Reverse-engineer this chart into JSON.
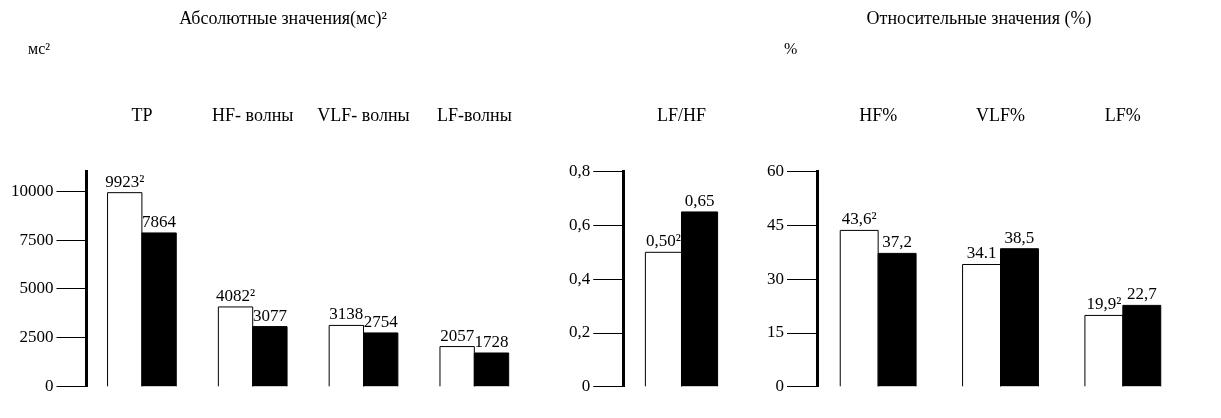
{
  "chart_data": [
    {
      "type": "bar",
      "title": "Абсолютные значения(мс)²",
      "ylabel": "мс²",
      "categories": [
        "TP",
        "HF- волны",
        "VLF- волны",
        "LF-волны"
      ],
      "ylim": [
        0,
        11000
      ],
      "yticks": [
        0,
        2500,
        5000,
        7500,
        10000
      ],
      "series": [
        {
          "color": "#ffffff",
          "values": [
            9923,
            4082,
            3138,
            2057
          ],
          "value_labels": [
            "9923²",
            "4082²",
            "3138",
            "2057"
          ]
        },
        {
          "color": "#000000",
          "values": [
            7864,
            3077,
            2754,
            1728
          ],
          "value_labels": [
            "7864",
            "3077",
            "2754",
            "1728"
          ]
        }
      ]
    },
    {
      "type": "bar",
      "categories": [
        "LF/HF"
      ],
      "ylim": [
        0,
        0.8
      ],
      "yticks": [
        {
          "value": 0,
          "label": "0"
        },
        {
          "value": 0.2,
          "label": "0,2"
        },
        {
          "value": 0.4,
          "label": "0,4"
        },
        {
          "value": 0.6,
          "label": "0,6"
        },
        {
          "value": 0.8,
          "label": "0,8"
        }
      ],
      "series": [
        {
          "color": "#ffffff",
          "values": [
            0.5
          ],
          "value_labels": [
            "0,50²"
          ]
        },
        {
          "color": "#000000",
          "values": [
            0.65
          ],
          "value_labels": [
            "0,65"
          ]
        }
      ]
    },
    {
      "type": "bar",
      "title": "Относительные значения (%)",
      "ylabel": "%",
      "categories": [
        "HF%",
        "VLF%",
        "LF%"
      ],
      "ylim": [
        0,
        60
      ],
      "yticks": [
        0,
        15,
        30,
        45,
        60
      ],
      "series": [
        {
          "color": "#ffffff",
          "values": [
            43.6,
            34.1,
            19.9
          ],
          "value_labels": [
            "43,6²",
            "34.1",
            "19,9²"
          ]
        },
        {
          "color": "#000000",
          "values": [
            37.2,
            38.5,
            22.7
          ],
          "value_labels": [
            "37,2",
            "38,5",
            "22,7"
          ]
        }
      ]
    }
  ]
}
